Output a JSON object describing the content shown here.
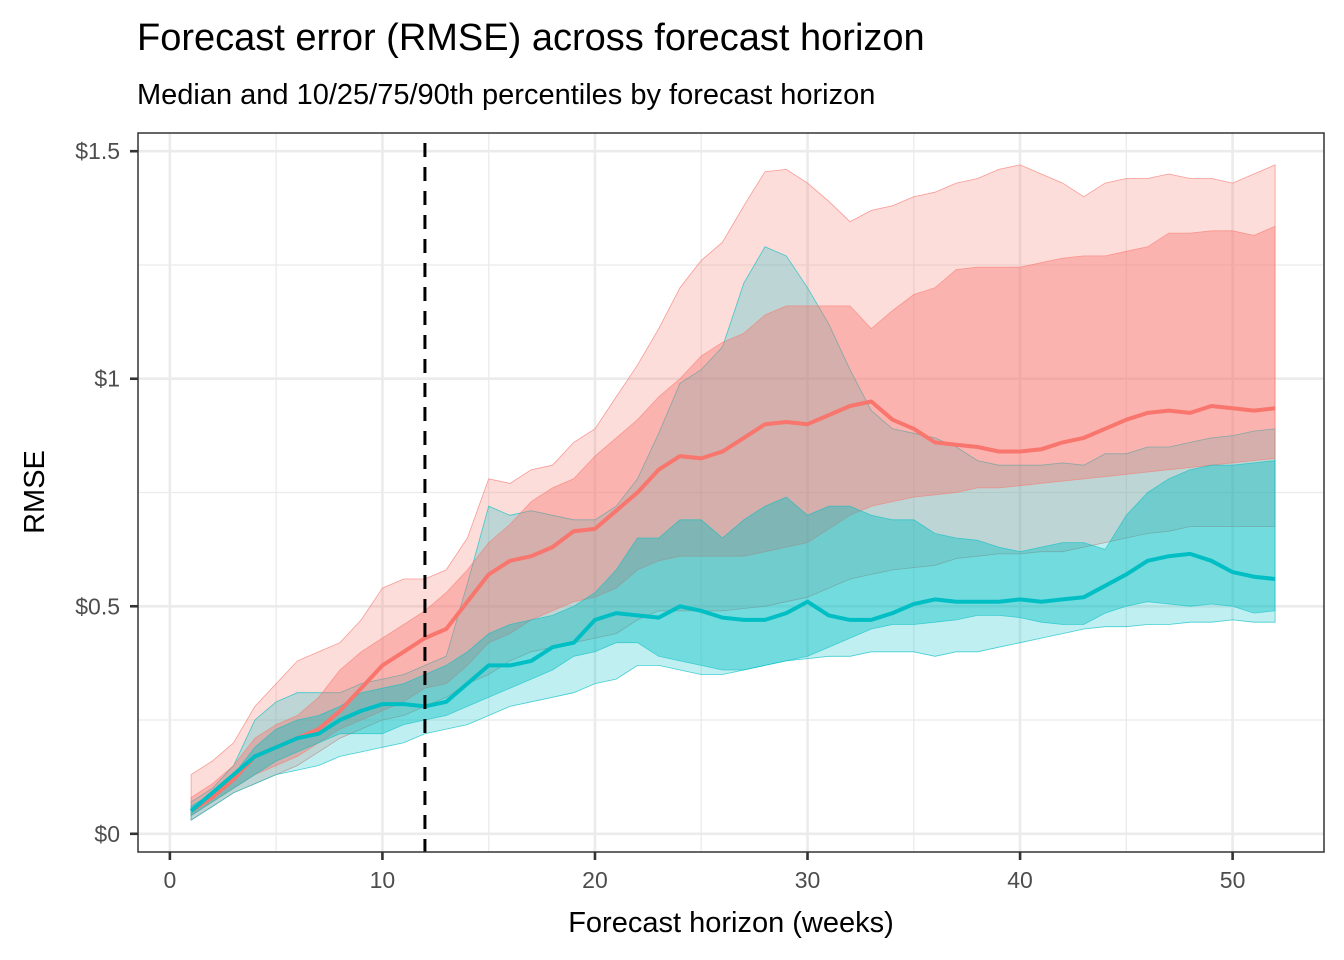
{
  "chart_data": {
    "type": "area",
    "title": "Forecast error (RMSE) across forecast horizon",
    "subtitle": "Median and 10/25/75/90th percentiles by forecast horizon",
    "xlabel": "Forecast horizon (weeks)",
    "ylabel": "RMSE",
    "xlim": [
      -1.5,
      54.3
    ],
    "ylim": [
      -0.04,
      1.54
    ],
    "x_ticks": [
      0,
      10,
      20,
      30,
      40,
      50
    ],
    "x_tick_labels": [
      "0",
      "10",
      "20",
      "30",
      "40",
      "50"
    ],
    "y_ticks": [
      0,
      0.5,
      1,
      1.5
    ],
    "y_tick_labels": [
      "$0",
      "$0.5",
      "$1",
      "$1.5"
    ],
    "grid": true,
    "legend": "none",
    "reference_line": {
      "type": "vertical",
      "x": 12,
      "style": "dashed",
      "color": "#000000"
    },
    "x": [
      1,
      2,
      3,
      4,
      5,
      6,
      7,
      8,
      9,
      10,
      11,
      12,
      13,
      14,
      15,
      16,
      17,
      18,
      19,
      20,
      21,
      22,
      23,
      24,
      25,
      26,
      27,
      28,
      29,
      30,
      31,
      32,
      33,
      34,
      35,
      36,
      37,
      38,
      39,
      40,
      41,
      42,
      43,
      44,
      45,
      46,
      47,
      48,
      49,
      50,
      51,
      52
    ],
    "series": [
      {
        "name": "red",
        "color": "#F8766D",
        "p90": [
          0.13,
          0.16,
          0.2,
          0.28,
          0.33,
          0.38,
          0.4,
          0.42,
          0.47,
          0.54,
          0.56,
          0.56,
          0.58,
          0.65,
          0.78,
          0.77,
          0.8,
          0.81,
          0.86,
          0.89,
          0.96,
          1.03,
          1.11,
          1.2,
          1.26,
          1.3,
          1.38,
          1.455,
          1.46,
          1.43,
          1.39,
          1.345,
          1.37,
          1.38,
          1.4,
          1.41,
          1.43,
          1.44,
          1.46,
          1.47,
          1.45,
          1.43,
          1.4,
          1.43,
          1.44,
          1.44,
          1.45,
          1.44,
          1.44,
          1.43,
          1.45,
          1.47
        ],
        "p75": [
          0.08,
          0.11,
          0.15,
          0.21,
          0.24,
          0.26,
          0.3,
          0.36,
          0.4,
          0.43,
          0.46,
          0.49,
          0.53,
          0.58,
          0.64,
          0.68,
          0.73,
          0.76,
          0.78,
          0.83,
          0.87,
          0.91,
          0.96,
          1.0,
          1.05,
          1.08,
          1.1,
          1.14,
          1.16,
          1.16,
          1.16,
          1.16,
          1.11,
          1.15,
          1.185,
          1.2,
          1.24,
          1.245,
          1.245,
          1.245,
          1.255,
          1.265,
          1.27,
          1.27,
          1.28,
          1.29,
          1.32,
          1.32,
          1.325,
          1.325,
          1.315,
          1.335
        ],
        "median": [
          0.05,
          0.08,
          0.12,
          0.17,
          0.19,
          0.21,
          0.23,
          0.27,
          0.32,
          0.37,
          0.4,
          0.43,
          0.45,
          0.51,
          0.57,
          0.6,
          0.61,
          0.63,
          0.665,
          0.67,
          0.71,
          0.75,
          0.8,
          0.83,
          0.825,
          0.84,
          0.87,
          0.9,
          0.905,
          0.9,
          0.92,
          0.94,
          0.95,
          0.91,
          0.89,
          0.86,
          0.855,
          0.85,
          0.84,
          0.84,
          0.845,
          0.86,
          0.87,
          0.89,
          0.91,
          0.925,
          0.93,
          0.925,
          0.94,
          0.935,
          0.93,
          0.935
        ],
        "p25": [
          0.04,
          0.07,
          0.1,
          0.13,
          0.15,
          0.17,
          0.2,
          0.23,
          0.25,
          0.27,
          0.29,
          0.32,
          0.33,
          0.37,
          0.42,
          0.44,
          0.47,
          0.49,
          0.51,
          0.52,
          0.54,
          0.58,
          0.6,
          0.61,
          0.61,
          0.61,
          0.61,
          0.62,
          0.63,
          0.64,
          0.67,
          0.7,
          0.72,
          0.73,
          0.74,
          0.745,
          0.75,
          0.76,
          0.76,
          0.765,
          0.77,
          0.775,
          0.78,
          0.785,
          0.79,
          0.795,
          0.8,
          0.805,
          0.81,
          0.815,
          0.82,
          0.825
        ],
        "p10": [
          0.03,
          0.06,
          0.09,
          0.11,
          0.13,
          0.15,
          0.18,
          0.21,
          0.23,
          0.25,
          0.26,
          0.28,
          0.3,
          0.33,
          0.35,
          0.38,
          0.4,
          0.41,
          0.42,
          0.43,
          0.44,
          0.47,
          0.49,
          0.49,
          0.49,
          0.49,
          0.495,
          0.5,
          0.51,
          0.52,
          0.54,
          0.56,
          0.57,
          0.58,
          0.585,
          0.59,
          0.605,
          0.61,
          0.615,
          0.615,
          0.62,
          0.62,
          0.63,
          0.64,
          0.65,
          0.66,
          0.665,
          0.675,
          0.675,
          0.675,
          0.675,
          0.675
        ]
      },
      {
        "name": "teal",
        "color": "#00BFC4",
        "p90": [
          0.07,
          0.1,
          0.15,
          0.25,
          0.29,
          0.31,
          0.31,
          0.31,
          0.33,
          0.34,
          0.35,
          0.37,
          0.39,
          0.55,
          0.72,
          0.7,
          0.71,
          0.7,
          0.69,
          0.69,
          0.72,
          0.78,
          0.88,
          0.99,
          1.02,
          1.07,
          1.21,
          1.29,
          1.27,
          1.2,
          1.12,
          1.02,
          0.93,
          0.89,
          0.88,
          0.87,
          0.85,
          0.82,
          0.81,
          0.81,
          0.81,
          0.815,
          0.81,
          0.835,
          0.835,
          0.85,
          0.85,
          0.86,
          0.87,
          0.875,
          0.885,
          0.89
        ],
        "p75": [
          0.06,
          0.09,
          0.13,
          0.19,
          0.23,
          0.25,
          0.26,
          0.28,
          0.31,
          0.32,
          0.33,
          0.35,
          0.37,
          0.4,
          0.44,
          0.46,
          0.47,
          0.48,
          0.5,
          0.53,
          0.58,
          0.65,
          0.65,
          0.69,
          0.69,
          0.65,
          0.69,
          0.72,
          0.74,
          0.7,
          0.72,
          0.72,
          0.7,
          0.69,
          0.69,
          0.66,
          0.65,
          0.645,
          0.63,
          0.62,
          0.63,
          0.64,
          0.64,
          0.625,
          0.7,
          0.75,
          0.78,
          0.8,
          0.81,
          0.81,
          0.815,
          0.82
        ],
        "median": [
          0.05,
          0.09,
          0.13,
          0.17,
          0.19,
          0.21,
          0.22,
          0.25,
          0.27,
          0.285,
          0.285,
          0.28,
          0.29,
          0.33,
          0.37,
          0.37,
          0.38,
          0.41,
          0.42,
          0.47,
          0.485,
          0.48,
          0.475,
          0.5,
          0.49,
          0.475,
          0.47,
          0.47,
          0.485,
          0.51,
          0.48,
          0.47,
          0.47,
          0.485,
          0.505,
          0.515,
          0.51,
          0.51,
          0.51,
          0.515,
          0.51,
          0.515,
          0.52,
          0.545,
          0.57,
          0.6,
          0.61,
          0.615,
          0.6,
          0.575,
          0.565,
          0.56
        ],
        "p25": [
          0.04,
          0.07,
          0.1,
          0.13,
          0.16,
          0.18,
          0.2,
          0.22,
          0.22,
          0.22,
          0.24,
          0.25,
          0.26,
          0.28,
          0.3,
          0.32,
          0.34,
          0.36,
          0.39,
          0.4,
          0.42,
          0.42,
          0.39,
          0.38,
          0.37,
          0.36,
          0.36,
          0.37,
          0.38,
          0.39,
          0.41,
          0.43,
          0.45,
          0.46,
          0.46,
          0.465,
          0.47,
          0.48,
          0.48,
          0.475,
          0.465,
          0.46,
          0.46,
          0.485,
          0.5,
          0.51,
          0.505,
          0.5,
          0.505,
          0.5,
          0.485,
          0.49
        ],
        "p10": [
          0.03,
          0.06,
          0.09,
          0.11,
          0.13,
          0.14,
          0.15,
          0.17,
          0.18,
          0.19,
          0.2,
          0.22,
          0.23,
          0.24,
          0.26,
          0.28,
          0.29,
          0.3,
          0.31,
          0.33,
          0.34,
          0.37,
          0.37,
          0.36,
          0.35,
          0.35,
          0.36,
          0.37,
          0.38,
          0.385,
          0.39,
          0.39,
          0.4,
          0.4,
          0.4,
          0.39,
          0.4,
          0.4,
          0.41,
          0.42,
          0.43,
          0.44,
          0.45,
          0.455,
          0.455,
          0.46,
          0.46,
          0.465,
          0.465,
          0.47,
          0.465,
          0.465
        ]
      }
    ]
  }
}
